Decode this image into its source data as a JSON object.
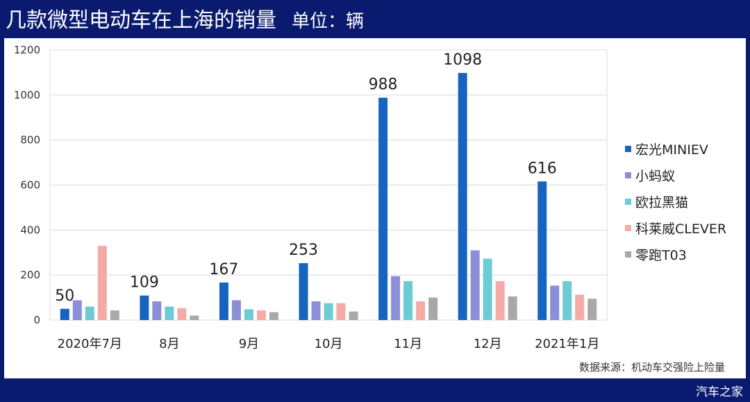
{
  "header": {
    "title": "几款微型电动车在上海的销量",
    "unit": "单位：辆"
  },
  "source_note": "数据来源：机动车交强险上险量",
  "watermark": "汽车之家",
  "chart_data": {
    "type": "bar",
    "title": "几款微型电动车在上海的销量",
    "ylabel": "",
    "xlabel": "",
    "ylim": [
      0,
      1200
    ],
    "yticks": [
      0,
      200,
      400,
      600,
      800,
      1000,
      1200
    ],
    "grid": true,
    "legend_position": "right",
    "categories": [
      "2020年7月",
      "8月",
      "9月",
      "10月",
      "11月",
      "12月",
      "2021年1月"
    ],
    "series": [
      {
        "name": "宏光MINIEV",
        "color": "#1565c0",
        "values": [
          50,
          109,
          167,
          253,
          988,
          1098,
          616
        ],
        "labels": [
          "50",
          "109",
          "167",
          "253",
          "988",
          "1098",
          "616"
        ]
      },
      {
        "name": "小蚂蚁",
        "color": "#8a8fd8",
        "values": [
          88,
          83,
          88,
          83,
          195,
          310,
          153
        ]
      },
      {
        "name": "欧拉黑猫",
        "color": "#6dcbd6",
        "values": [
          60,
          60,
          48,
          75,
          173,
          273,
          173
        ]
      },
      {
        "name": "科莱威CLEVER",
        "color": "#f5aaa8",
        "values": [
          330,
          53,
          43,
          75,
          83,
          173,
          113
        ]
      },
      {
        "name": "零跑T03",
        "color": "#a8a8a8",
        "values": [
          43,
          20,
          35,
          38,
          100,
          105,
          95
        ]
      }
    ]
  }
}
